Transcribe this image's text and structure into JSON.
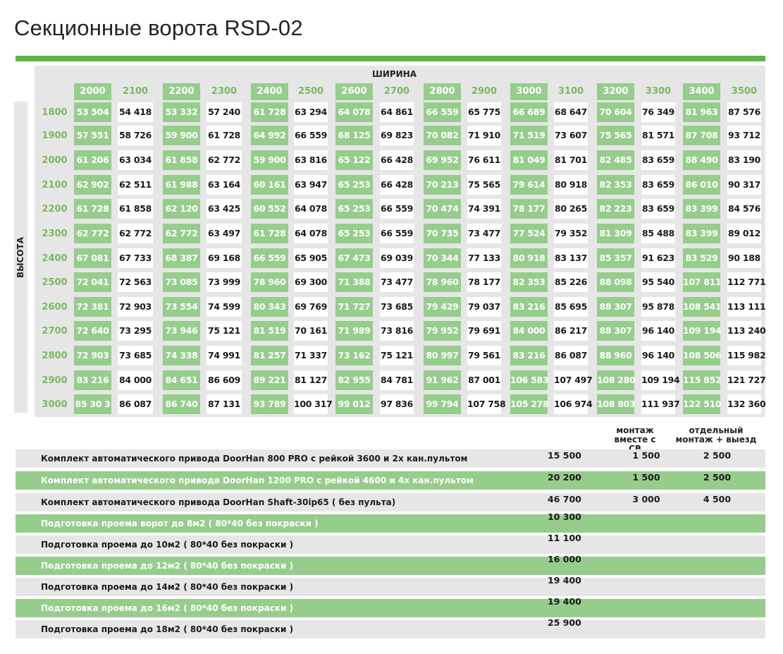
{
  "title": "Секционные ворота RSD-02",
  "width_label": "ШИРИНА",
  "height_label": "ВЫСОТА",
  "widths": [
    "2000",
    "2100",
    "2200",
    "2300",
    "2400",
    "2500",
    "2600",
    "2700",
    "2800",
    "2900",
    "3000",
    "3100",
    "3200",
    "3300",
    "3400",
    "3500"
  ],
  "heights": [
    "1800",
    "1900",
    "2000",
    "2100",
    "2200",
    "2300",
    "2400",
    "2500",
    "2600",
    "2700",
    "2800",
    "2900",
    "3000"
  ],
  "prices": [
    [
      "53 504",
      "54 418",
      "53 332",
      "57 240",
      "61 728",
      "63 294",
      "64 078",
      "64 861",
      "66 559",
      "65 775",
      "66 689",
      "68 647",
      "70 604",
      "76 349",
      "81 963",
      "87 576"
    ],
    [
      "57 551",
      "58 726",
      "59 900",
      "61 728",
      "64 992",
      "66 559",
      "68 125",
      "69 823",
      "70 082",
      "71 910",
      "71 519",
      "73 607",
      "75 565",
      "81 571",
      "87 708",
      "93 712"
    ],
    [
      "61 206",
      "63 034",
      "61 858",
      "62 772",
      "59 900",
      "63 816",
      "65 122",
      "66 428",
      "69 952",
      "76 611",
      "81 049",
      "81 701",
      "82 485",
      "83 659",
      "88 490",
      "83 190"
    ],
    [
      "62 902",
      "62 511",
      "61 988",
      "63 164",
      "60 161",
      "63 947",
      "65 253",
      "66 428",
      "70 213",
      "75 565",
      "79 614",
      "80 918",
      "82 353",
      "83 659",
      "86 010",
      "90 317"
    ],
    [
      "61 728",
      "61 858",
      "62 120",
      "63 425",
      "60 552",
      "64 078",
      "65 253",
      "66 559",
      "70 474",
      "74 391",
      "78 177",
      "80 265",
      "82 223",
      "83 659",
      "83 399",
      "84 576"
    ],
    [
      "62 772",
      "62 772",
      "62 772",
      "63 497",
      "61 728",
      "64 078",
      "65 253",
      "66 559",
      "70 735",
      "73 477",
      "77 524",
      "79 352",
      "81 309",
      "85 488",
      "83 399",
      "89 012"
    ],
    [
      "67 081",
      "67 733",
      "68 387",
      "69 168",
      "66 559",
      "65 905",
      "67 473",
      "69 039",
      "70 344",
      "77 133",
      "80 918",
      "83 137",
      "85 357",
      "91 623",
      "83 529",
      "90 188"
    ],
    [
      "72 041",
      "72 563",
      "73 085",
      "73 999",
      "78 960",
      "69 300",
      "71 388",
      "73 477",
      "78 960",
      "78 177",
      "82 353",
      "85 226",
      "88 098",
      "95 540",
      "107 811",
      "112 771"
    ],
    [
      "72 381",
      "72 903",
      "73 554",
      "74 599",
      "80 343",
      "69 769",
      "71 727",
      "73 685",
      "79 429",
      "79 037",
      "83 216",
      "85 695",
      "88 307",
      "95 878",
      "108 541",
      "113 111"
    ],
    [
      "72 640",
      "73 295",
      "73 946",
      "75 121",
      "81 519",
      "70 161",
      "71 989",
      "73 816",
      "79 952",
      "79 691",
      "84 000",
      "86 217",
      "88 307",
      "96 140",
      "109 194",
      "113 240"
    ],
    [
      "72 903",
      "73 685",
      "74 338",
      "74 991",
      "81 257",
      "71 337",
      "73 162",
      "75 121",
      "80 997",
      "79 561",
      "83 216",
      "86 087",
      "88 960",
      "96 140",
      "108 506",
      "115 982"
    ],
    [
      "83 216",
      "84 000",
      "84 651",
      "86 609",
      "89 221",
      "81 127",
      "82 955",
      "84 781",
      "91 962",
      "87 001",
      "106 583",
      "107 497",
      "108 280",
      "109 194",
      "115 852",
      "121 727"
    ],
    [
      "85 30 3",
      "86 087",
      "86 740",
      "87 131",
      "93 789",
      "100 317",
      "99 012",
      "97 836",
      "99 794",
      "107 758",
      "105 278",
      "106 974",
      "108 803",
      "111 937",
      "122 510",
      "132 360"
    ]
  ],
  "mount_headers": {
    "with_sv_1": "монтаж",
    "with_sv_2": "вместе с СВ",
    "separate_1": "отдельный",
    "separate_2": "монтаж + выезд"
  },
  "services": [
    {
      "label": "Комплект автоматического привода DoorHan 800 PRO с рейкой 3600 и 2х кан.пультом",
      "price": "15 500",
      "mount_with": "1 500",
      "mount_separate": "2 500",
      "style": "w"
    },
    {
      "label": "Комплект автоматического привода DoorHan 1200 PRO с рейкой 4600 и 4х кан.пультом",
      "price": "20 200",
      "mount_with": "1 500",
      "mount_separate": "2 500",
      "style": "g"
    },
    {
      "label": "Комплект автоматического привода DoorHan Shaft-30ip65 ( без пульта)",
      "price": "46 700",
      "mount_with": "3 000",
      "mount_separate": "4 500",
      "style": "w"
    },
    {
      "label": "Подготовка проема ворот до 8м2 ( 80*40 без покраски )",
      "price": "10 300",
      "mount_with": "",
      "mount_separate": "",
      "style": "g"
    },
    {
      "label": "Подготовка проема до 10м2 ( 80*40 без покраски )",
      "price": "11 100",
      "mount_with": "",
      "mount_separate": "",
      "style": "w"
    },
    {
      "label": "Подготовка проема до 12м2 ( 80*40 без покраски )",
      "price": "16 000",
      "mount_with": "",
      "mount_separate": "",
      "style": "g"
    },
    {
      "label": "Подготовка проема до 14м2 ( 80*40 без покраски )",
      "price": "19 400",
      "mount_with": "",
      "mount_separate": "",
      "style": "w"
    },
    {
      "label": "Подготовка проема до 16м2 ( 80*40 без покраски )",
      "price": "19 400",
      "mount_with": "",
      "mount_separate": "",
      "style": "g"
    },
    {
      "label": "Подготовка проема до 18м2 ( 80*40 без покраски )",
      "price": "25 900",
      "mount_with": "",
      "mount_separate": "",
      "style": "w"
    }
  ],
  "colors": {
    "accent_bar": "#5fb446",
    "green_cell": "#96cd8d",
    "header_green_text": "#7ab864",
    "grey_bg": "#e6e6e6"
  }
}
